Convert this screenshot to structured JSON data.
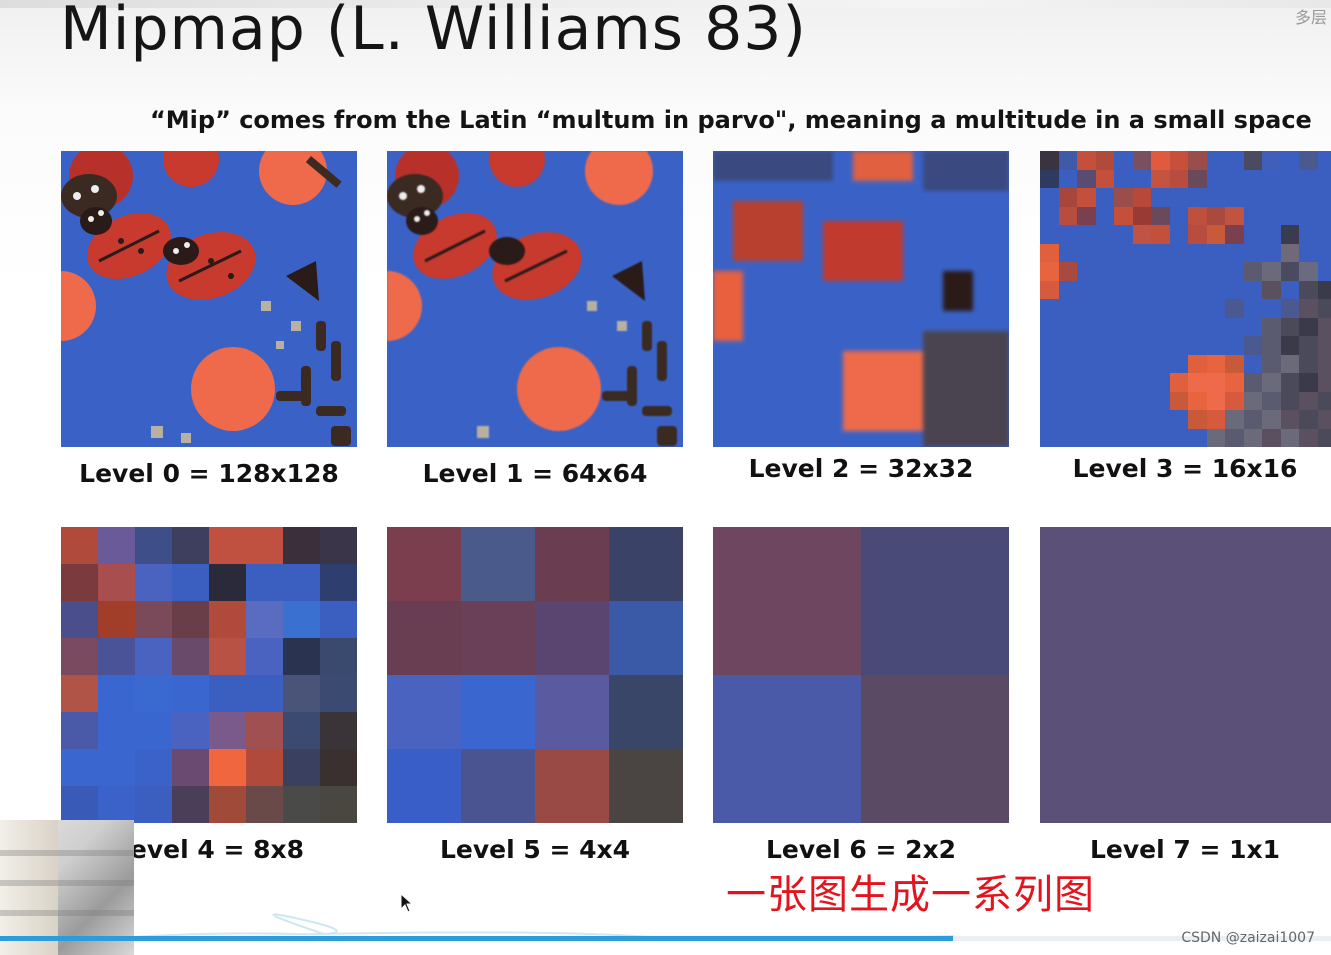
{
  "slide": {
    "title": "Mipmap (L. Williams 83)",
    "subtitle": "“Mip” comes from the Latin “multum in parvo\", meaning a multitude in a small space",
    "levels": [
      {
        "label": "Level 0 = 128x128"
      },
      {
        "label": "Level 1 = 64x64"
      },
      {
        "label": "Level 2 = 32x32"
      },
      {
        "label": "Level 3 = 16x16"
      },
      {
        "label": "Level 4 = 8x8"
      },
      {
        "label": "Level 5 = 4x4"
      },
      {
        "label": "Level 6 = 2x2"
      },
      {
        "label": "Level 7 = 1x1"
      }
    ],
    "corner_note": "多层"
  },
  "overlay": {
    "annotation": "一张图生成一系列图",
    "watermark": "CSDN @zaizai1007",
    "progress_fraction": 0.716
  },
  "colors": {
    "blue": "#3a62c6",
    "red": "#c83a2e",
    "orange": "#ef6a4a",
    "dark": "#3a2a22",
    "annotation_red": "#e4141e",
    "progress_blue": "#2d9cdb"
  },
  "pixel_grids": {
    "level3": [
      [
        "#3a3440",
        "#3f5aa8",
        "#c4503c",
        "#b04a3a",
        "#3a5fc0",
        "#7a5060",
        "#e05a3e",
        "#c8503a",
        "#9a4d4a",
        "#3a5fc0",
        "#3a5fc0",
        "#4a4a60",
        "#3f5fb8",
        "#3a5fc0",
        "#4a5a90",
        "#3a5fc0"
      ],
      [
        "#2e3a60",
        "#3a5fc0",
        "#5a4c70",
        "#c4503c",
        "#3a5fc0",
        "#3a5fc0",
        "#c45440",
        "#b84c3e",
        "#6a4a5a",
        "#3a5fc0",
        "#3a5fc0",
        "#3a5fc0",
        "#3a5fc0",
        "#3a5fc0",
        "#3a5fc0",
        "#3a5fc0"
      ],
      [
        "#3a5fc0",
        "#a8463c",
        "#c4503c",
        "#3a5fc0",
        "#9a4d4a",
        "#b8483a",
        "#3a5fc0",
        "#3a5fc0",
        "#3a5fc0",
        "#3a5fc0",
        "#3a5fc0",
        "#3a5fc0",
        "#3a5fc0",
        "#3a5fc0",
        "#3a5fc0",
        "#3a5fc0"
      ],
      [
        "#3a5fc0",
        "#b84c3e",
        "#7a4050",
        "#3a5fc0",
        "#c4503c",
        "#9a3a34",
        "#6a4a5a",
        "#3a5fc0",
        "#c0503e",
        "#a84a40",
        "#c05440",
        "#3a5fc0",
        "#3a5fc0",
        "#3a5fc0",
        "#3a5fc0",
        "#3a5fc0"
      ],
      [
        "#3a5fc0",
        "#3a5fc0",
        "#3a5fc0",
        "#3a5fc0",
        "#3a5fc0",
        "#c05444",
        "#c4503c",
        "#3a5fc0",
        "#b84c3e",
        "#c85a3a",
        "#7a4050",
        "#3a5fc0",
        "#3a5fc0",
        "#3a3a50",
        "#3a5fc0",
        "#3a5fc0"
      ],
      [
        "#e0603e",
        "#3a5fc0",
        "#3a5fc0",
        "#3a5fc0",
        "#3a5fc0",
        "#3a5fc0",
        "#3a5fc0",
        "#3a5fc0",
        "#3a5fc0",
        "#3a5fc0",
        "#3a5fc0",
        "#3a5fc0",
        "#3a5fc0",
        "#706a78",
        "#3a5fc0",
        "#3a5fc0"
      ],
      [
        "#e8643e",
        "#a84a40",
        "#3a5fc0",
        "#3a5fc0",
        "#3a5fc0",
        "#3a5fc0",
        "#3a5fc0",
        "#3a5fc0",
        "#3a5fc0",
        "#3a5fc0",
        "#3a5fc0",
        "#5a5a70",
        "#6a6a7a",
        "#4a4a60",
        "#6a6a80",
        "#3a5fc0"
      ],
      [
        "#d85a3e",
        "#3a5fc0",
        "#3a5fc0",
        "#3a5fc0",
        "#3a5fc0",
        "#3a5fc0",
        "#3a5fc0",
        "#3a5fc0",
        "#3a5fc0",
        "#3a5fc0",
        "#3a5fc0",
        "#3a5fc0",
        "#5a5060",
        "#3a5fc0",
        "#4a4a5a",
        "#3a3a4a"
      ],
      [
        "#3a5fc0",
        "#3a5fc0",
        "#3a5fc0",
        "#3a5fc0",
        "#3a5fc0",
        "#3a5fc0",
        "#3a5fc0",
        "#3a5fc0",
        "#3a5fc0",
        "#3a5fc0",
        "#4a5a90",
        "#3a5fc0",
        "#3a5fc0",
        "#4a5a90",
        "#5a5060",
        "#4a4a5a"
      ],
      [
        "#3a5fc0",
        "#3a5fc0",
        "#3a5fc0",
        "#3a5fc0",
        "#3a5fc0",
        "#3a5fc0",
        "#3a5fc0",
        "#3a5fc0",
        "#3a5fc0",
        "#3a5fc0",
        "#3a5fc0",
        "#3a5fc0",
        "#5a5a70",
        "#4a4a5a",
        "#3a3a4a",
        "#5a5060"
      ],
      [
        "#3a5fc0",
        "#3a5fc0",
        "#3a5fc0",
        "#3a5fc0",
        "#3a5fc0",
        "#3a5fc0",
        "#3a5fc0",
        "#3a5fc0",
        "#3a5fc0",
        "#3a5fc0",
        "#3a5fc0",
        "#4a5a90",
        "#5a5a70",
        "#3a3a4a",
        "#4a4a5a",
        "#5a5060"
      ],
      [
        "#3a5fc0",
        "#3a5fc0",
        "#3a5fc0",
        "#3a5fc0",
        "#3a5fc0",
        "#3a5fc0",
        "#3a5fc0",
        "#3a5fc0",
        "#e0603e",
        "#e8643e",
        "#c85a3a",
        "#3a5fc0",
        "#5a5a70",
        "#6a6a7a",
        "#4a4a5a",
        "#5a5060"
      ],
      [
        "#3a5fc0",
        "#3a5fc0",
        "#3a5fc0",
        "#3a5fc0",
        "#3a5fc0",
        "#3a5fc0",
        "#3a5fc0",
        "#e0603e",
        "#ef6a4a",
        "#ef6a4a",
        "#e8643e",
        "#5a5a70",
        "#6a6a7a",
        "#4a4a5a",
        "#3a3a4a",
        "#5a5060"
      ],
      [
        "#3a5fc0",
        "#3a5fc0",
        "#3a5fc0",
        "#3a5fc0",
        "#3a5fc0",
        "#3a5fc0",
        "#3a5fc0",
        "#c85a3a",
        "#e8643e",
        "#ef6a4a",
        "#d85a3e",
        "#6a6a7a",
        "#5a5a70",
        "#4a4a5a",
        "#5a5060",
        "#4a4a5a"
      ],
      [
        "#3a5fc0",
        "#3a5fc0",
        "#3a5fc0",
        "#3a5fc0",
        "#3a5fc0",
        "#3a5fc0",
        "#3a5fc0",
        "#3a5fc0",
        "#c85a3a",
        "#d85a3e",
        "#6a6a7a",
        "#5a5a70",
        "#6a6a7a",
        "#5a5060",
        "#4a4a5a",
        "#5a5060"
      ],
      [
        "#3a5fc0",
        "#3a5fc0",
        "#3a5fc0",
        "#3a5fc0",
        "#3a5fc0",
        "#3a5fc0",
        "#3a5fc0",
        "#3a5fc0",
        "#3a5fc0",
        "#6a6a7a",
        "#5a5a70",
        "#6a6a7a",
        "#5a5060",
        "#6a6a7a",
        "#5a5060",
        "#4a4a5a"
      ]
    ],
    "level4": [
      [
        "#b04a3a",
        "#6a5a9a",
        "#3e4e88",
        "#3e3e5e",
        "#c05040",
        "#c05040",
        "#3a2f3a",
        "#3a3548"
      ],
      [
        "#7a3a3e",
        "#a84e4e",
        "#4a62c0",
        "#3a5fc0",
        "#2a2a3a",
        "#3a5fc0",
        "#3a5fc0",
        "#2e3e6e"
      ],
      [
        "#4a4e8a",
        "#a03e2a",
        "#7a4a5a",
        "#6a3e48",
        "#b04a3a",
        "#5a6cc0",
        "#3a70d0",
        "#3a5fc0"
      ],
      [
        "#7a4a60",
        "#4a5298",
        "#4a62c0",
        "#6a4a6a",
        "#b85244",
        "#4a62c0",
        "#2a3450",
        "#3a4a6e"
      ],
      [
        "#b05448",
        "#3a66d0",
        "#3a6ad0",
        "#3a66d0",
        "#3a5fc0",
        "#3a5fc0",
        "#4a5478",
        "#3a4a70"
      ],
      [
        "#4a5aa8",
        "#3a66d0",
        "#3a66d0",
        "#4a62c0",
        "#7a5a8a",
        "#a05050",
        "#3a4a70",
        "#3a3438"
      ],
      [
        "#3a66d0",
        "#3a66d0",
        "#3a62c8",
        "#6a4a70",
        "#f0663e",
        "#b04a3a",
        "#3a4060",
        "#3a3030"
      ],
      [
        "#3a5ab8",
        "#3a62c8",
        "#3a5fc0",
        "#4a3e58",
        "#a04a3a",
        "#6a4a48",
        "#4a4a48",
        "#4a4640"
      ]
    ],
    "level5": [
      [
        "#7a3e4e",
        "#4a5a8a",
        "#6a3e50",
        "#3a4268"
      ],
      [
        "#6a3e52",
        "#6a4058",
        "#5a4470",
        "#3a5aa8"
      ],
      [
        "#4a62c0",
        "#3a66d0",
        "#5a5aa0",
        "#3a4668"
      ],
      [
        "#3a5ec8",
        "#4a5490",
        "#9a4a44",
        "#4a4442"
      ]
    ],
    "level6": [
      [
        "#6e4660",
        "#4a4a78"
      ],
      [
        "#4a5aa8",
        "#5a4a64"
      ]
    ],
    "level7": [
      [
        "#5a5078"
      ]
    ]
  }
}
